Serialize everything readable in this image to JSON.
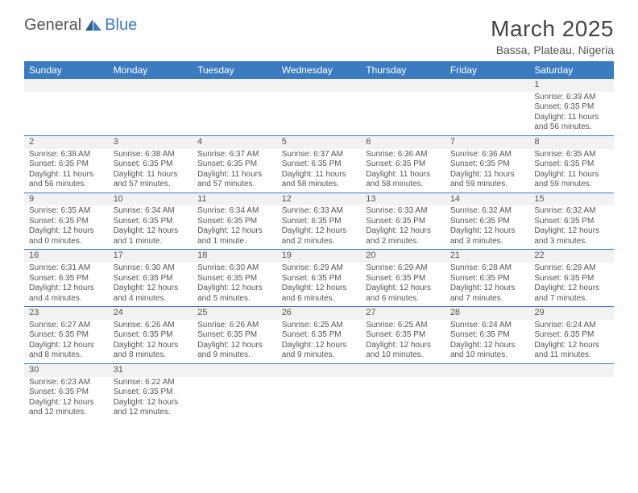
{
  "logo": {
    "part1": "General",
    "part2": "Blue"
  },
  "title": "March 2025",
  "subtitle": "Bassa, Plateau, Nigeria",
  "colors": {
    "headerBg": "#3b7bbf",
    "headerText": "#ffffff",
    "numBg": "#f2f2f2",
    "text": "#555555",
    "rule": "#3b7bbf"
  },
  "fontSizes": {
    "title": 28,
    "subtitle": 14,
    "dayHeader": 12,
    "dayNum": 11,
    "detail": 10
  },
  "dayHeaders": [
    "Sunday",
    "Monday",
    "Tuesday",
    "Wednesday",
    "Thursday",
    "Friday",
    "Saturday"
  ],
  "weeks": [
    [
      null,
      null,
      null,
      null,
      null,
      null,
      {
        "n": "1",
        "sunrise": "Sunrise: 6:39 AM",
        "sunset": "Sunset: 6:35 PM",
        "day": "Daylight: 11 hours and 56 minutes."
      }
    ],
    [
      {
        "n": "2",
        "sunrise": "Sunrise: 6:38 AM",
        "sunset": "Sunset: 6:35 PM",
        "day": "Daylight: 11 hours and 56 minutes."
      },
      {
        "n": "3",
        "sunrise": "Sunrise: 6:38 AM",
        "sunset": "Sunset: 6:35 PM",
        "day": "Daylight: 11 hours and 57 minutes."
      },
      {
        "n": "4",
        "sunrise": "Sunrise: 6:37 AM",
        "sunset": "Sunset: 6:35 PM",
        "day": "Daylight: 11 hours and 57 minutes."
      },
      {
        "n": "5",
        "sunrise": "Sunrise: 6:37 AM",
        "sunset": "Sunset: 6:35 PM",
        "day": "Daylight: 11 hours and 58 minutes."
      },
      {
        "n": "6",
        "sunrise": "Sunrise: 6:36 AM",
        "sunset": "Sunset: 6:35 PM",
        "day": "Daylight: 11 hours and 58 minutes."
      },
      {
        "n": "7",
        "sunrise": "Sunrise: 6:36 AM",
        "sunset": "Sunset: 6:35 PM",
        "day": "Daylight: 11 hours and 59 minutes."
      },
      {
        "n": "8",
        "sunrise": "Sunrise: 6:35 AM",
        "sunset": "Sunset: 6:35 PM",
        "day": "Daylight: 11 hours and 59 minutes."
      }
    ],
    [
      {
        "n": "9",
        "sunrise": "Sunrise: 6:35 AM",
        "sunset": "Sunset: 6:35 PM",
        "day": "Daylight: 12 hours and 0 minutes."
      },
      {
        "n": "10",
        "sunrise": "Sunrise: 6:34 AM",
        "sunset": "Sunset: 6:35 PM",
        "day": "Daylight: 12 hours and 1 minute."
      },
      {
        "n": "11",
        "sunrise": "Sunrise: 6:34 AM",
        "sunset": "Sunset: 6:35 PM",
        "day": "Daylight: 12 hours and 1 minute."
      },
      {
        "n": "12",
        "sunrise": "Sunrise: 6:33 AM",
        "sunset": "Sunset: 6:35 PM",
        "day": "Daylight: 12 hours and 2 minutes."
      },
      {
        "n": "13",
        "sunrise": "Sunrise: 6:33 AM",
        "sunset": "Sunset: 6:35 PM",
        "day": "Daylight: 12 hours and 2 minutes."
      },
      {
        "n": "14",
        "sunrise": "Sunrise: 6:32 AM",
        "sunset": "Sunset: 6:35 PM",
        "day": "Daylight: 12 hours and 3 minutes."
      },
      {
        "n": "15",
        "sunrise": "Sunrise: 6:32 AM",
        "sunset": "Sunset: 6:35 PM",
        "day": "Daylight: 12 hours and 3 minutes."
      }
    ],
    [
      {
        "n": "16",
        "sunrise": "Sunrise: 6:31 AM",
        "sunset": "Sunset: 6:35 PM",
        "day": "Daylight: 12 hours and 4 minutes."
      },
      {
        "n": "17",
        "sunrise": "Sunrise: 6:30 AM",
        "sunset": "Sunset: 6:35 PM",
        "day": "Daylight: 12 hours and 4 minutes."
      },
      {
        "n": "18",
        "sunrise": "Sunrise: 6:30 AM",
        "sunset": "Sunset: 6:35 PM",
        "day": "Daylight: 12 hours and 5 minutes."
      },
      {
        "n": "19",
        "sunrise": "Sunrise: 6:29 AM",
        "sunset": "Sunset: 6:35 PM",
        "day": "Daylight: 12 hours and 6 minutes."
      },
      {
        "n": "20",
        "sunrise": "Sunrise: 6:29 AM",
        "sunset": "Sunset: 6:35 PM",
        "day": "Daylight: 12 hours and 6 minutes."
      },
      {
        "n": "21",
        "sunrise": "Sunrise: 6:28 AM",
        "sunset": "Sunset: 6:35 PM",
        "day": "Daylight: 12 hours and 7 minutes."
      },
      {
        "n": "22",
        "sunrise": "Sunrise: 6:28 AM",
        "sunset": "Sunset: 6:35 PM",
        "day": "Daylight: 12 hours and 7 minutes."
      }
    ],
    [
      {
        "n": "23",
        "sunrise": "Sunrise: 6:27 AM",
        "sunset": "Sunset: 6:35 PM",
        "day": "Daylight: 12 hours and 8 minutes."
      },
      {
        "n": "24",
        "sunrise": "Sunrise: 6:26 AM",
        "sunset": "Sunset: 6:35 PM",
        "day": "Daylight: 12 hours and 8 minutes."
      },
      {
        "n": "25",
        "sunrise": "Sunrise: 6:26 AM",
        "sunset": "Sunset: 6:35 PM",
        "day": "Daylight: 12 hours and 9 minutes."
      },
      {
        "n": "26",
        "sunrise": "Sunrise: 6:25 AM",
        "sunset": "Sunset: 6:35 PM",
        "day": "Daylight: 12 hours and 9 minutes."
      },
      {
        "n": "27",
        "sunrise": "Sunrise: 6:25 AM",
        "sunset": "Sunset: 6:35 PM",
        "day": "Daylight: 12 hours and 10 minutes."
      },
      {
        "n": "28",
        "sunrise": "Sunrise: 6:24 AM",
        "sunset": "Sunset: 6:35 PM",
        "day": "Daylight: 12 hours and 10 minutes."
      },
      {
        "n": "29",
        "sunrise": "Sunrise: 6:24 AM",
        "sunset": "Sunset: 6:35 PM",
        "day": "Daylight: 12 hours and 11 minutes."
      }
    ],
    [
      {
        "n": "30",
        "sunrise": "Sunrise: 6:23 AM",
        "sunset": "Sunset: 6:35 PM",
        "day": "Daylight: 12 hours and 12 minutes."
      },
      {
        "n": "31",
        "sunrise": "Sunrise: 6:22 AM",
        "sunset": "Sunset: 6:35 PM",
        "day": "Daylight: 12 hours and 12 minutes."
      },
      null,
      null,
      null,
      null,
      null
    ]
  ]
}
